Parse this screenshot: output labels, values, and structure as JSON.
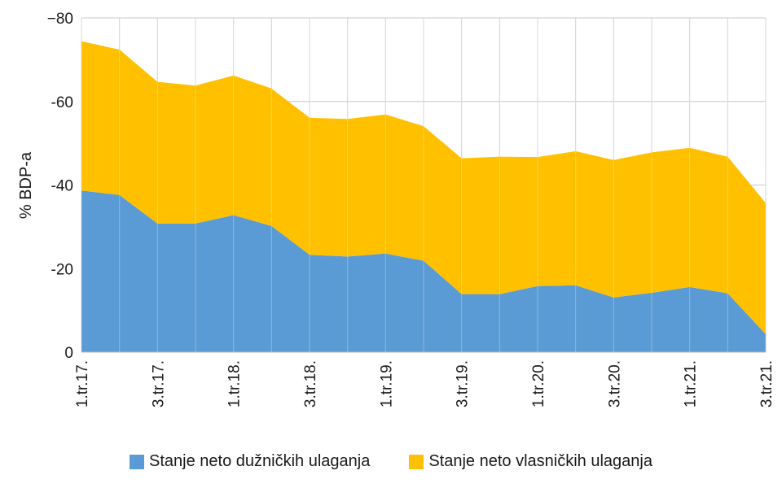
{
  "chart_data": {
    "type": "area",
    "stacked": true,
    "ylabel": "% BDP-a",
    "ylim": [
      0,
      -80
    ],
    "y_ticks": [
      "−80",
      "-60",
      "-40",
      "-20",
      "0"
    ],
    "y_tick_values": [
      -80,
      -60,
      -40,
      -20,
      0
    ],
    "grid": true,
    "legend_position": "bottom",
    "categories": [
      "1.tr.17.",
      "2.tr.17.",
      "3.tr.17.",
      "4.tr.17.",
      "1.tr.18.",
      "2.tr.18.",
      "3.tr.18.",
      "4.tr.18.",
      "1.tr.19.",
      "2.tr.19.",
      "3.tr.19.",
      "4.tr.19.",
      "1.tr.20.",
      "2.tr.20.",
      "3.tr.20.",
      "4.tr.20.",
      "1.tr.21.",
      "2.tr.21.",
      "3.tr.21."
    ],
    "x_tick_labels": [
      "1.tr.17.",
      "3.tr.17.",
      "1.tr.18.",
      "3.tr.18.",
      "1.tr.19.",
      "3.tr.19.",
      "1.tr.20.",
      "3.tr.20.",
      "1.tr.21.",
      "3.tr.21."
    ],
    "series": [
      {
        "name": "Stanje neto dužničkih ulaganja",
        "color": "#5b9bd5",
        "values": [
          -38.7,
          -37.6,
          -30.8,
          -30.8,
          -32.8,
          -30.2,
          -23.3,
          -22.9,
          -23.6,
          -21.9,
          -13.9,
          -13.9,
          -15.8,
          -16.0,
          -13.1,
          -14.2,
          -15.6,
          -14.1,
          -4.3
        ]
      },
      {
        "name": "Stanje neto vlasničkih ulaganja",
        "color": "#ffc000",
        "values": [
          -35.7,
          -34.8,
          -33.9,
          -33.0,
          -33.4,
          -32.9,
          -32.8,
          -32.9,
          -33.3,
          -32.2,
          -32.5,
          -32.9,
          -30.9,
          -32.1,
          -32.9,
          -33.6,
          -33.3,
          -32.7,
          -31.4
        ]
      }
    ]
  }
}
